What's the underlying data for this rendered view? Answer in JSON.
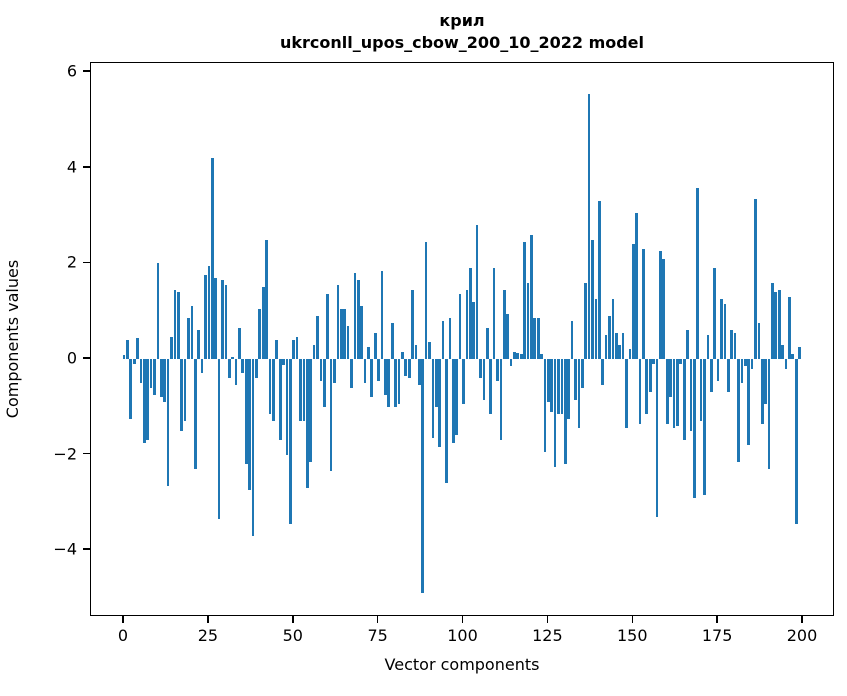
{
  "figure": {
    "title_line1": "крил",
    "title_line2": "ukrconll_upos_cbow_200_10_2022 model",
    "xlabel": "Vector components",
    "ylabel": "Components values"
  },
  "chart_data": {
    "type": "bar",
    "title": "крил\nukrconll_upos_cbow_200_10_2022 model",
    "xlabel": "Vector components",
    "ylabel": "Components values",
    "bar_color": "#1f77b4",
    "grid": false,
    "legend": null,
    "x_start": 0,
    "x_step": 1,
    "n_components": 200,
    "xticks": [
      0,
      25,
      50,
      75,
      100,
      125,
      150,
      175,
      200
    ],
    "yticks": [
      6,
      4,
      2,
      0,
      -2,
      -4
    ],
    "xlim": [
      -10.4,
      209.4
    ],
    "ylim": [
      -5.4,
      6.2
    ],
    "values": [
      0.08,
      0.4,
      -1.25,
      -0.1,
      0.43,
      -0.5,
      -1.75,
      -1.7,
      -0.6,
      -0.75,
      2.0,
      -0.8,
      -0.9,
      -2.65,
      0.45,
      1.45,
      1.4,
      -1.5,
      -1.3,
      0.85,
      1.1,
      -2.3,
      0.6,
      -0.3,
      1.75,
      1.95,
      4.2,
      1.7,
      -3.35,
      1.65,
      1.55,
      -0.4,
      0.05,
      -0.55,
      0.65,
      -0.3,
      -2.2,
      -2.75,
      -3.7,
      -0.4,
      1.05,
      1.5,
      2.5,
      -1.15,
      -1.3,
      0.4,
      -1.7,
      -0.12,
      -2.0,
      -3.45,
      0.4,
      0.45,
      -1.3,
      -1.3,
      -2.7,
      -2.15,
      0.3,
      0.9,
      -0.47,
      -1.0,
      1.35,
      -2.35,
      -0.5,
      1.55,
      1.05,
      1.05,
      0.7,
      -0.6,
      1.8,
      1.65,
      1.1,
      -0.5,
      0.25,
      -0.8,
      0.55,
      -0.45,
      1.85,
      -0.75,
      -1.0,
      0.75,
      -1.0,
      -0.95,
      0.15,
      -0.35,
      -0.4,
      1.45,
      0.3,
      -0.55,
      -4.9,
      2.45,
      0.35,
      -1.65,
      -1.0,
      -1.85,
      0.8,
      -2.6,
      0.85,
      -1.75,
      -1.6,
      1.35,
      -0.95,
      1.45,
      1.9,
      1.2,
      2.8,
      -0.4,
      -0.85,
      0.65,
      -1.15,
      1.9,
      -0.45,
      -1.7,
      1.45,
      0.95,
      -0.15,
      0.15,
      0.12,
      0.1,
      2.45,
      1.6,
      2.6,
      0.85,
      0.85,
      0.1,
      -1.95,
      -0.9,
      -1.1,
      -2.25,
      -1.15,
      -1.15,
      -2.2,
      -1.25,
      0.8,
      -0.85,
      -1.45,
      -0.6,
      1.6,
      5.55,
      2.5,
      1.25,
      3.3,
      -0.55,
      0.5,
      0.9,
      1.25,
      0.55,
      0.3,
      0.55,
      -1.45,
      0.2,
      2.4,
      3.05,
      -1.35,
      2.3,
      -1.15,
      -0.7,
      -0.1,
      -3.3,
      2.25,
      2.1,
      -1.35,
      -0.8,
      -1.45,
      -1.4,
      -0.1,
      -1.7,
      0.6,
      -1.5,
      -2.9,
      3.58,
      -1.3,
      -2.85,
      0.5,
      -0.7,
      1.9,
      -0.45,
      1.25,
      1.15,
      -0.7,
      0.6,
      0.55,
      -2.15,
      -0.5,
      -0.15,
      -1.8,
      -0.2,
      3.35,
      0.75,
      -1.35,
      -0.95,
      -2.3,
      1.6,
      1.4,
      1.45,
      0.3,
      -0.2,
      1.3,
      0.1,
      -3.45,
      0.25
    ]
  }
}
